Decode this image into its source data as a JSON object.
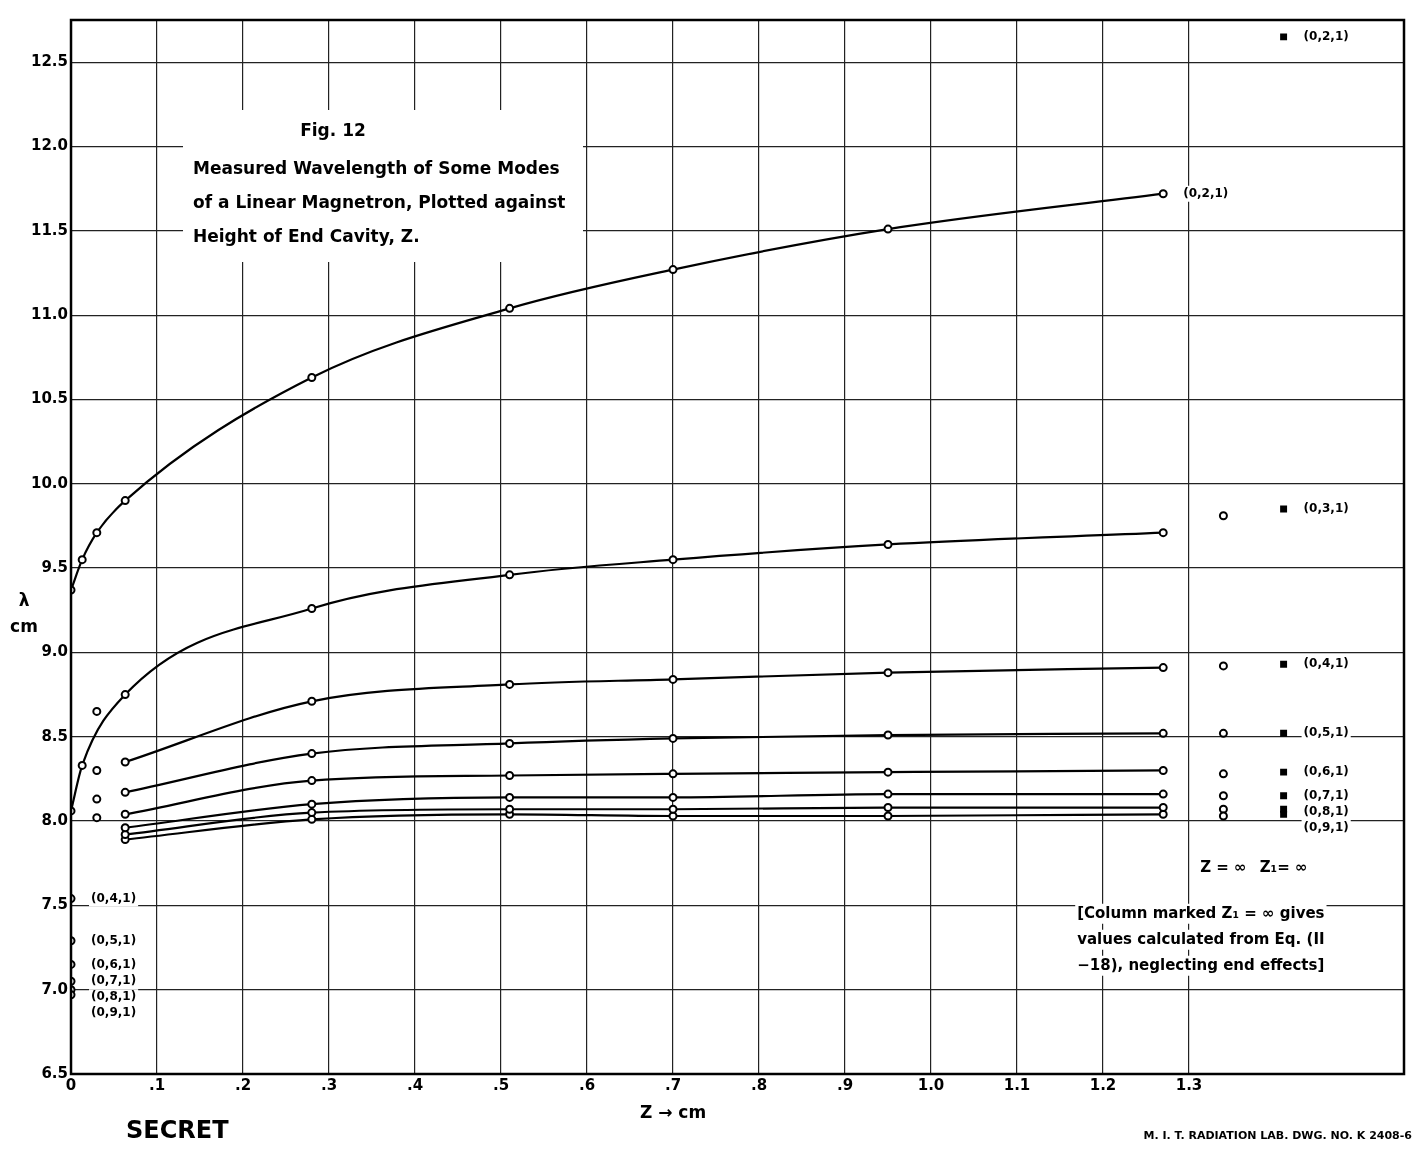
{
  "chart_data": {
    "type": "line",
    "title": "Fig. 12",
    "subtitle": "Measured Wavelength of Some Modes of a Linear Magnetron, Plotted against Height of End Cavity, Z.",
    "xlabel": "Z → cm",
    "ylabel": "λ cm",
    "xlim": [
      0,
      1.55
    ],
    "ylim": [
      6.5,
      12.75
    ],
    "xticks": [
      0,
      {
        "value": 0.1,
        "label": ".1"
      },
      {
        "value": 0.2,
        "label": ".2"
      },
      {
        "value": 0.3,
        "label": ".3"
      },
      {
        "value": 0.4,
        "label": ".4"
      },
      {
        "value": 0.5,
        "label": ".5"
      },
      {
        "value": 0.6,
        "label": ".6"
      },
      {
        "value": 0.7,
        "label": ".7"
      },
      {
        "value": 0.8,
        "label": ".8"
      },
      {
        "value": 0.9,
        "label": ".9"
      },
      {
        "value": 1,
        "label": "1.0"
      },
      1.1,
      1.2,
      1.3
    ],
    "yticks": [
      6.5,
      {
        "value": 7,
        "label": "7.0"
      },
      7.5,
      {
        "value": 8,
        "label": "8.0"
      },
      8.5,
      {
        "value": 9,
        "label": "9.0"
      },
      9.5,
      {
        "value": 10,
        "label": "10.0"
      },
      10.5,
      {
        "value": 11,
        "label": "11.0"
      },
      11.5,
      {
        "value": 12,
        "label": "12.0"
      },
      12.5
    ],
    "grid": true,
    "legend": false,
    "line_style": "solid",
    "series": [
      {
        "marker": "circle",
        "color": "#000000",
        "x": [
          0,
          0.013,
          0.03,
          0.063,
          0.28,
          0.51,
          0.7,
          0.95,
          1.27
        ],
        "values": [
          9.37,
          9.55,
          9.71,
          9.9,
          10.63,
          11.04,
          11.27,
          11.51,
          11.72
        ]
      },
      {
        "marker": "circle",
        "color": "#000000",
        "x": [
          0,
          0.013,
          0.063,
          0.28,
          0.51,
          0.7,
          0.95,
          1.27
        ],
        "values": [
          8.06,
          8.33,
          8.75,
          9.26,
          9.46,
          9.55,
          9.64,
          9.71
        ]
      },
      {
        "type": "line",
        "marker": "circle",
        "color": "#000000",
        "x": [
          0.063,
          0.28,
          0.51,
          0.7,
          0.95,
          1.27
        ],
        "values": [
          8.35,
          8.71,
          8.81,
          8.84,
          8.88,
          8.91
        ]
      },
      {
        "type": "line",
        "marker": "circle",
        "color": "#000000",
        "x": [
          0.063,
          0.28,
          0.51,
          0.7,
          0.95,
          1.27
        ],
        "values": [
          8.17,
          8.4,
          8.46,
          8.49,
          8.51,
          8.52
        ]
      },
      {
        "type": "line",
        "marker": "circle",
        "color": "#000000",
        "x": [
          0.063,
          0.28,
          0.51,
          0.7,
          0.95,
          1.27
        ],
        "values": [
          8.04,
          8.24,
          8.27,
          8.28,
          8.29,
          8.3
        ]
      },
      {
        "type": "line",
        "marker": "circle",
        "color": "#000000",
        "x": [
          0.063,
          0.28,
          0.51,
          0.7,
          0.95,
          1.27
        ],
        "values": [
          7.96,
          8.1,
          8.14,
          8.14,
          8.16,
          8.16
        ]
      },
      {
        "type": "line",
        "marker": "circle",
        "color": "#000000",
        "x": [
          0.063,
          0.28,
          0.51,
          0.7,
          0.95,
          1.27
        ],
        "values": [
          7.92,
          8.05,
          8.07,
          8.07,
          8.08,
          8.08
        ]
      },
      {
        "type": "line",
        "marker": "circle",
        "color": "#000000",
        "x": [
          0.063,
          0.28,
          0.51,
          0.7,
          0.95,
          1.27
        ],
        "values": [
          7.89,
          8.01,
          8.04,
          8.03,
          8.03,
          8.04
        ]
      },
      {
        "type": "scatter",
        "marker": "circle",
        "color": "#000000",
        "x": [
          0,
          0,
          0,
          0,
          0,
          0,
          0.03,
          0.03,
          0.03,
          0.03
        ],
        "values": [
          7.54,
          7.29,
          7.15,
          7.05,
          7.0,
          6.97,
          8.65,
          8.3,
          8.13,
          8.02
        ]
      },
      {
        "type": "scatter",
        "marker": "circle",
        "color": "#000000",
        "x": [
          1.34,
          1.34,
          1.34,
          1.34,
          1.34,
          1.34,
          1.34
        ],
        "values": [
          9.81,
          8.92,
          8.52,
          8.28,
          8.15,
          8.07,
          8.03
        ]
      },
      {
        "type": "scatter",
        "marker": "square",
        "color": "#000000",
        "x": [
          1.41,
          1.41,
          1.41,
          1.41,
          1.41,
          1.41,
          1.41,
          1.41
        ],
        "values": [
          12.65,
          9.85,
          8.93,
          8.52,
          8.29,
          8.15,
          8.07,
          8.04
        ]
      }
    ],
    "annotations": [
      {
        "text": "(0,2,1)",
        "x": 1.27,
        "y": 11.72
      },
      {
        "text": "(0,2,1)",
        "x": 1.41,
        "y": 12.65
      },
      {
        "text": "(0,3,1)",
        "x": 1.41,
        "y": 9.85
      },
      {
        "text": "(0,4,1)",
        "x": 1.41,
        "y": 8.93
      },
      {
        "text": "(0,5,1)",
        "x": 1.41,
        "y": 8.52
      },
      {
        "text": "(0,6,1)",
        "x": 1.41,
        "y": 8.29
      },
      {
        "text": "(0,7,1)",
        "x": 1.41,
        "y": 8.15
      },
      {
        "text": "(0,8,1)",
        "x": 1.41,
        "y": 8.07
      },
      {
        "text": "(0,9,1)",
        "x": 1.41,
        "y": 8.04
      },
      {
        "text": "(0,4,1)",
        "x": 0,
        "y": 7.54
      },
      {
        "text": "(0,5,1)",
        "x": 0,
        "y": 7.29
      },
      {
        "text": "(0,6,1)",
        "x": 0,
        "y": 7.15
      },
      {
        "text": "(0,7,1)",
        "x": 0,
        "y": 7.05
      },
      {
        "text": "(0,8,1)",
        "x": 0,
        "y": 7.0
      },
      {
        "text": "(0,9,1)",
        "x": 0,
        "y": 6.97
      },
      "Z = ∞",
      "Z₁= ∞",
      "[Column marked Z₁ = ∞ gives values calculated from Eq. (II −18), neglecting end effects]",
      "SECRET",
      "M. I. T. RADIATION LAB. DWG. NO. K 2408-6"
    ]
  }
}
